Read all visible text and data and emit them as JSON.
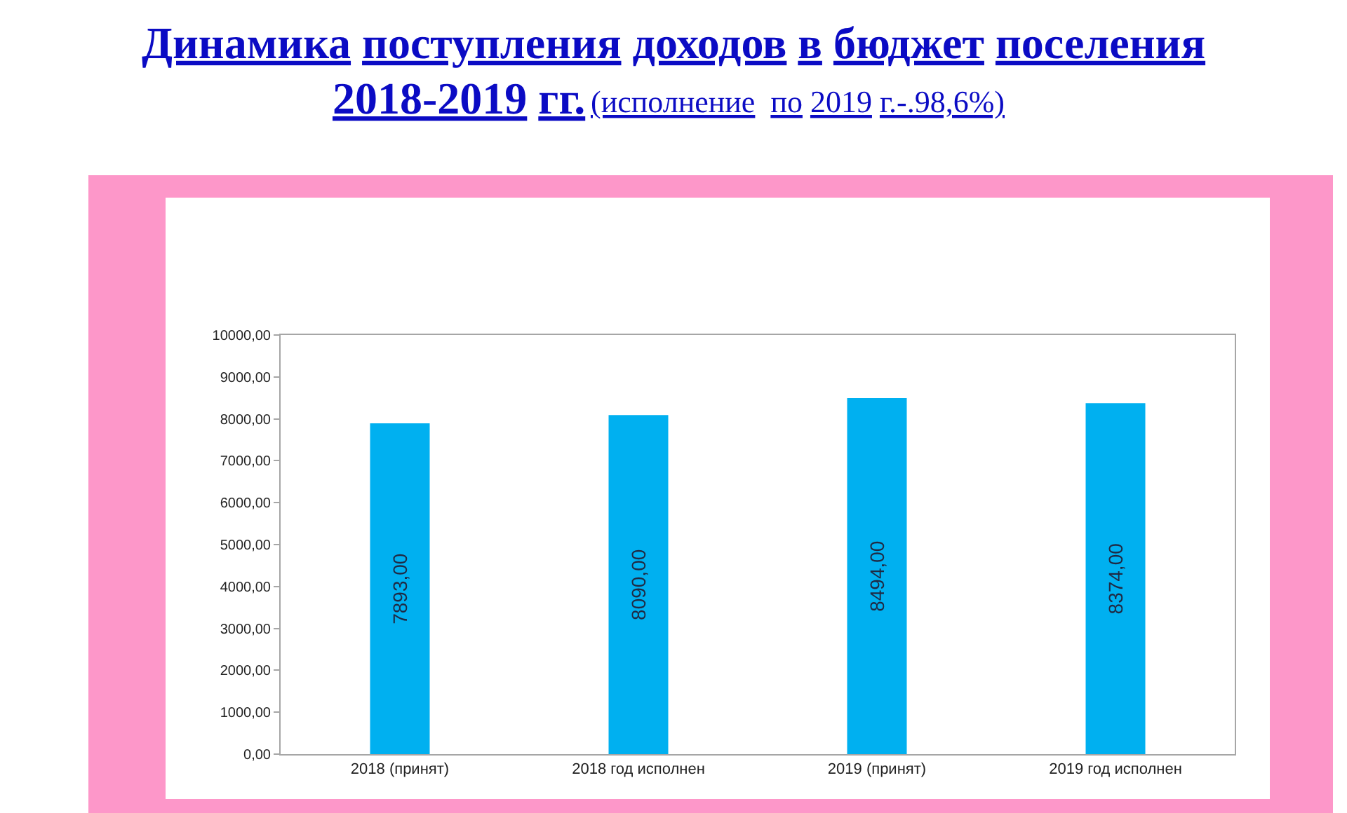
{
  "chart_data": {
    "type": "bar",
    "title": "Динамика поступления доходов в бюджет поселения",
    "subtitle": "2018-2019 гг.",
    "annotations": [
      "(исполнение  по 2019 г.-.98,6%)"
    ],
    "categories": [
      "2018 (принят)",
      "2018 год исполнен",
      "2019 (принят)",
      "2019 год исполнен"
    ],
    "values": [
      7893,
      8090,
      8494,
      8374
    ],
    "value_labels": [
      "7893,00",
      "8090,00",
      "8494,00",
      "8374,00"
    ],
    "color": "#00b0f0",
    "ylim": [
      0,
      10000
    ],
    "yticks": [
      {
        "value": 0,
        "label": "0,00"
      },
      {
        "value": 1000,
        "label": "1000,00"
      },
      {
        "value": 2000,
        "label": "2000,00"
      },
      {
        "value": 3000,
        "label": "3000,00"
      },
      {
        "value": 4000,
        "label": "4000,00"
      },
      {
        "value": 5000,
        "label": "5000,00"
      },
      {
        "value": 6000,
        "label": "6000,00"
      },
      {
        "value": 7000,
        "label": "7000,00"
      },
      {
        "value": 8000,
        "label": "8000,00"
      },
      {
        "value": 9000,
        "label": "9000,00"
      },
      {
        "value": 10000,
        "label": "10000,00"
      }
    ]
  }
}
